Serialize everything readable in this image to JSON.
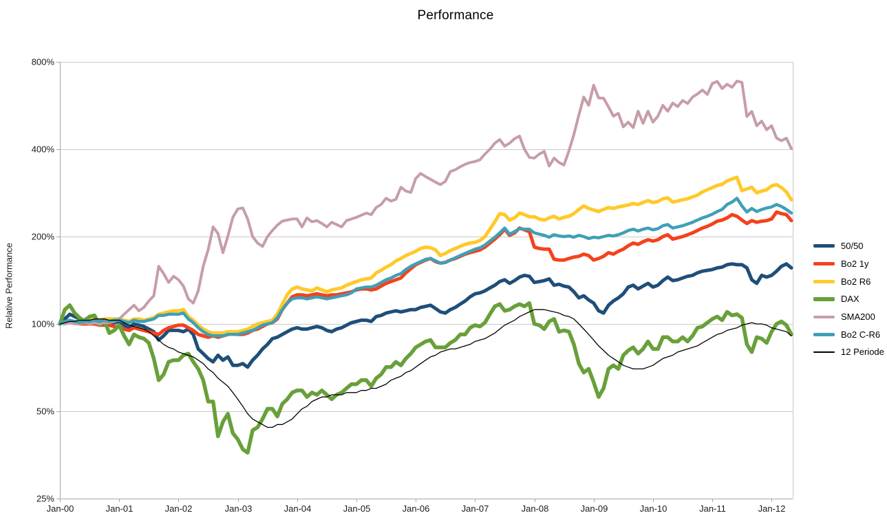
{
  "title": "Performance",
  "chart_data": {
    "type": "line",
    "title": "Performance",
    "ylabel": "Relative Performance",
    "y_scale": "log2",
    "ylim": [
      25,
      800
    ],
    "y_ticks": [
      {
        "label": "800%",
        "value": 800
      },
      {
        "label": "400%",
        "value": 400
      },
      {
        "label": "200%",
        "value": 200
      },
      {
        "label": "100%",
        "value": 100
      },
      {
        "label": "50%",
        "value": 50
      },
      {
        "label": "25%",
        "value": 25
      }
    ],
    "x_tick_labels": [
      "Jan-00",
      "Jan-01",
      "Jan-02",
      "Jan-03",
      "Jan-04",
      "Jan-05",
      "Jan-06",
      "Jan-07",
      "Jan-08",
      "Jan-09",
      "Jan-10",
      "Jan-11",
      "Jan-12"
    ],
    "x_start": "Jan-2000",
    "x_end": "May-2012",
    "interval": "monthly",
    "grid": true,
    "legend_position": "right",
    "style": {
      "grid_color": "#c9c9c9",
      "axis_color": "#a6a6a6",
      "text_color": "#1a1a1a",
      "background": "#ffffff"
    },
    "series": [
      {
        "name": "50/50",
        "color": "#1F4E79",
        "width": 5,
        "values": [
          100,
          104,
          108,
          106,
          104,
          103,
          106,
          105,
          102,
          103,
          100,
          101,
          102,
          99,
          97,
          100,
          99,
          98,
          96,
          94,
          88,
          91,
          95,
          95,
          95,
          94,
          96,
          92,
          82,
          79,
          76,
          74,
          78,
          75,
          77,
          72,
          72,
          73,
          71,
          75,
          78,
          82,
          85,
          89,
          90,
          92,
          94,
          96,
          97,
          96,
          96,
          97,
          98,
          97,
          95,
          94,
          96,
          97,
          99,
          101,
          102,
          103,
          103,
          102,
          106,
          107,
          109,
          110,
          111,
          110,
          111,
          112,
          112,
          114,
          115,
          116,
          113,
          110,
          109,
          112,
          114,
          117,
          120,
          124,
          127,
          128,
          130,
          133,
          136,
          140,
          142,
          138,
          141,
          145,
          147,
          146,
          139,
          140,
          141,
          143,
          136,
          137,
          135,
          134,
          129,
          123,
          125,
          121,
          118,
          111,
          109,
          116,
          120,
          123,
          127,
          134,
          136,
          132,
          135,
          138,
          134,
          136,
          141,
          145,
          141,
          142,
          144,
          146,
          147,
          150,
          152,
          153,
          154,
          156,
          157,
          160,
          161,
          160,
          160,
          156,
          142,
          138,
          147,
          145,
          147,
          152,
          158,
          161,
          156
        ]
      },
      {
        "name": "Bo2 1y",
        "color": "#F4421C",
        "width": 5,
        "values": [
          100,
          101,
          102,
          101,
          100,
          100,
          100,
          100,
          99,
          99,
          99,
          98,
          98,
          96,
          95,
          97,
          96,
          95,
          94,
          93,
          92,
          95,
          97,
          98,
          99,
          99,
          97,
          95,
          92,
          91,
          90,
          91,
          90,
          91,
          92,
          93,
          92,
          92,
          93,
          95,
          96,
          98,
          100,
          101,
          104,
          112,
          118,
          124,
          126,
          126,
          125,
          126,
          127,
          126,
          125,
          126,
          126,
          127,
          128,
          129,
          131,
          132,
          132,
          131,
          132,
          135,
          138,
          140,
          142,
          144,
          150,
          155,
          160,
          163,
          166,
          168,
          164,
          162,
          163,
          166,
          168,
          171,
          174,
          176,
          178,
          180,
          184,
          190,
          196,
          203,
          212,
          202,
          206,
          214,
          211,
          208,
          184,
          182,
          181,
          181,
          167,
          166,
          166,
          168,
          170,
          171,
          174,
          172,
          166,
          168,
          171,
          176,
          174,
          178,
          181,
          186,
          190,
          188,
          192,
          195,
          193,
          195,
          200,
          203,
          196,
          198,
          200,
          203,
          206,
          210,
          214,
          217,
          221,
          226,
          228,
          232,
          238,
          235,
          228,
          222,
          227,
          224,
          226,
          227,
          230,
          243,
          240,
          238,
          227
        ]
      },
      {
        "name": "Bo2 R6",
        "color": "#FFC929",
        "width": 5,
        "values": [
          100,
          101,
          102,
          102,
          102,
          103,
          103,
          104,
          103,
          104,
          104,
          104,
          104,
          103,
          102,
          104,
          104,
          103,
          104,
          105,
          108,
          109,
          110,
          111,
          111,
          112,
          106,
          103,
          99,
          96,
          94,
          93,
          93,
          93,
          94,
          94,
          94,
          95,
          96,
          98,
          100,
          101,
          102,
          103,
          108,
          117,
          126,
          132,
          134,
          132,
          131,
          130,
          133,
          131,
          129,
          131,
          132,
          133,
          136,
          138,
          140,
          142,
          143,
          144,
          150,
          153,
          157,
          160,
          165,
          168,
          172,
          175,
          178,
          182,
          184,
          183,
          180,
          172,
          175,
          179,
          182,
          185,
          188,
          190,
          191,
          194,
          200,
          212,
          225,
          240,
          238,
          228,
          232,
          241,
          238,
          234,
          234,
          230,
          228,
          232,
          235,
          230,
          233,
          235,
          240,
          248,
          255,
          250,
          247,
          244,
          248,
          252,
          250,
          253,
          255,
          257,
          260,
          258,
          262,
          266,
          262,
          264,
          270,
          272,
          263,
          265,
          268,
          270,
          274,
          278,
          285,
          290,
          295,
          300,
          303,
          311,
          316,
          320,
          288,
          292,
          296,
          283,
          287,
          290,
          299,
          302,
          295,
          285,
          268
        ]
      },
      {
        "name": "DAX",
        "color": "#68A03A",
        "width": 5.5,
        "values": [
          100,
          112,
          116,
          109,
          105,
          102,
          106,
          107,
          99,
          103,
          93,
          95,
          99,
          91,
          85,
          92,
          90,
          89,
          86,
          76,
          64,
          67,
          74,
          75,
          75,
          78,
          79,
          74,
          70,
          64,
          54,
          54,
          41,
          46,
          49,
          42,
          40,
          37,
          36,
          43,
          44,
          47,
          51,
          51,
          48,
          53,
          55,
          58,
          59,
          59,
          56,
          58,
          57,
          59,
          57,
          55,
          57,
          58,
          60,
          62,
          62,
          64,
          64,
          61,
          65,
          67,
          71,
          71,
          74,
          72,
          76,
          79,
          83,
          85,
          87,
          88,
          83,
          83,
          83,
          86,
          88,
          92,
          92,
          97,
          99,
          98,
          101,
          108,
          115,
          117,
          111,
          112,
          115,
          117,
          115,
          118,
          100,
          99,
          96,
          102,
          104,
          94,
          95,
          94,
          85,
          73,
          68,
          70,
          63,
          56,
          60,
          70,
          72,
          70,
          78,
          81,
          83,
          79,
          82,
          87,
          82,
          82,
          90,
          90,
          87,
          87,
          90,
          87,
          91,
          97,
          98,
          101,
          104,
          106,
          103,
          110,
          107,
          108,
          105,
          85,
          80,
          90,
          89,
          86,
          94,
          100,
          102,
          99,
          92
        ]
      },
      {
        "name": "SMA200",
        "color": "#C79DA7",
        "width": 4,
        "values": [
          100,
          100,
          101,
          100,
          100,
          101,
          100,
          101,
          100,
          101,
          101,
          102,
          104,
          108,
          112,
          116,
          111,
          114,
          120,
          125,
          158,
          149,
          139,
          146,
          142,
          135,
          122,
          118,
          130,
          158,
          180,
          216,
          205,
          176,
          201,
          233,
          249,
          251,
          230,
          200,
          190,
          185,
          200,
          210,
          219,
          226,
          228,
          230,
          230,
          216,
          232,
          225,
          227,
          222,
          216,
          224,
          220,
          216,
          227,
          230,
          233,
          237,
          241,
          238,
          252,
          258,
          271,
          265,
          269,
          296,
          287,
          284,
          317,
          330,
          322,
          315,
          308,
          302,
          310,
          335,
          340,
          348,
          355,
          360,
          363,
          368,
          385,
          400,
          420,
          432,
          410,
          420,
          435,
          444,
          400,
          375,
          373,
          385,
          393,
          350,
          373,
          360,
          353,
          395,
          450,
          525,
          605,
          567,
          665,
          601,
          600,
          560,
          520,
          532,
          478,
          496,
          475,
          541,
          491,
          541,
          496,
          520,
          567,
          541,
          577,
          561,
          589,
          575,
          605,
          620,
          640,
          618,
          674,
          685,
          647,
          670,
          654,
          687,
          680,
          519,
          540,
          482,
          500,
          467,
          482,
          437,
          428,
          437,
          402
        ]
      },
      {
        "name": "Bo2 C-R6",
        "color": "#3FA0B6",
        "width": 4.5,
        "values": [
          100,
          102,
          103,
          102,
          101,
          102,
          102,
          103,
          102,
          103,
          102,
          103,
          103,
          102,
          101,
          103,
          102,
          102,
          103,
          104,
          107,
          107,
          108,
          108,
          108,
          109,
          104,
          101,
          97,
          94,
          92,
          91,
          91,
          91,
          92,
          92,
          92,
          93,
          94,
          95,
          97,
          99,
          100,
          101,
          105,
          112,
          118,
          122,
          123,
          123,
          122,
          123,
          124,
          123,
          122,
          123,
          124,
          125,
          126,
          128,
          132,
          133,
          134,
          134,
          136,
          139,
          142,
          144,
          147,
          149,
          154,
          158,
          161,
          164,
          167,
          168,
          165,
          162,
          163,
          166,
          169,
          172,
          175,
          178,
          181,
          183,
          187,
          193,
          199,
          206,
          214,
          204,
          208,
          213,
          212,
          212,
          206,
          204,
          202,
          199,
          203,
          201,
          200,
          201,
          199,
          202,
          200,
          197,
          199,
          198,
          200,
          202,
          201,
          203,
          206,
          210,
          212,
          209,
          212,
          214,
          211,
          213,
          218,
          220,
          214,
          216,
          218,
          221,
          224,
          228,
          232,
          235,
          239,
          244,
          248,
          258,
          263,
          271,
          255,
          243,
          250,
          244,
          248,
          251,
          253,
          258,
          254,
          248,
          241
        ]
      },
      {
        "name": "12 Periode",
        "color": "#000000",
        "width": 1.3,
        "values": [
          100,
          101,
          102,
          102,
          103,
          103,
          103,
          104,
          104,
          104,
          103,
          103,
          103,
          101,
          99,
          98,
          97,
          96,
          94,
          91,
          88,
          85,
          83,
          82,
          80,
          79,
          78,
          77,
          75,
          73,
          70,
          68,
          65,
          63,
          61,
          58,
          55,
          52,
          49,
          47,
          46,
          45,
          44,
          44,
          45,
          45,
          46,
          47,
          49,
          51,
          52,
          54,
          55,
          56,
          56,
          57,
          57,
          57,
          58,
          58,
          58,
          59,
          59,
          60,
          60,
          61,
          62,
          64,
          65,
          66,
          68,
          69,
          71,
          73,
          75,
          77,
          78,
          80,
          81,
          82,
          82,
          83,
          84,
          85,
          87,
          88,
          89,
          91,
          93,
          96,
          99,
          101,
          103,
          106,
          108,
          110,
          112,
          112,
          112,
          111,
          110,
          109,
          107,
          106,
          104,
          100,
          96,
          92,
          88,
          84,
          81,
          78,
          76,
          74,
          72,
          71,
          70,
          70,
          70,
          71,
          72,
          74,
          76,
          77,
          78,
          80,
          81,
          82,
          83,
          84,
          86,
          88,
          90,
          92,
          93,
          95,
          96,
          97,
          99,
          100,
          101,
          100,
          100,
          99,
          97,
          96,
          95,
          94,
          91
        ]
      }
    ]
  }
}
